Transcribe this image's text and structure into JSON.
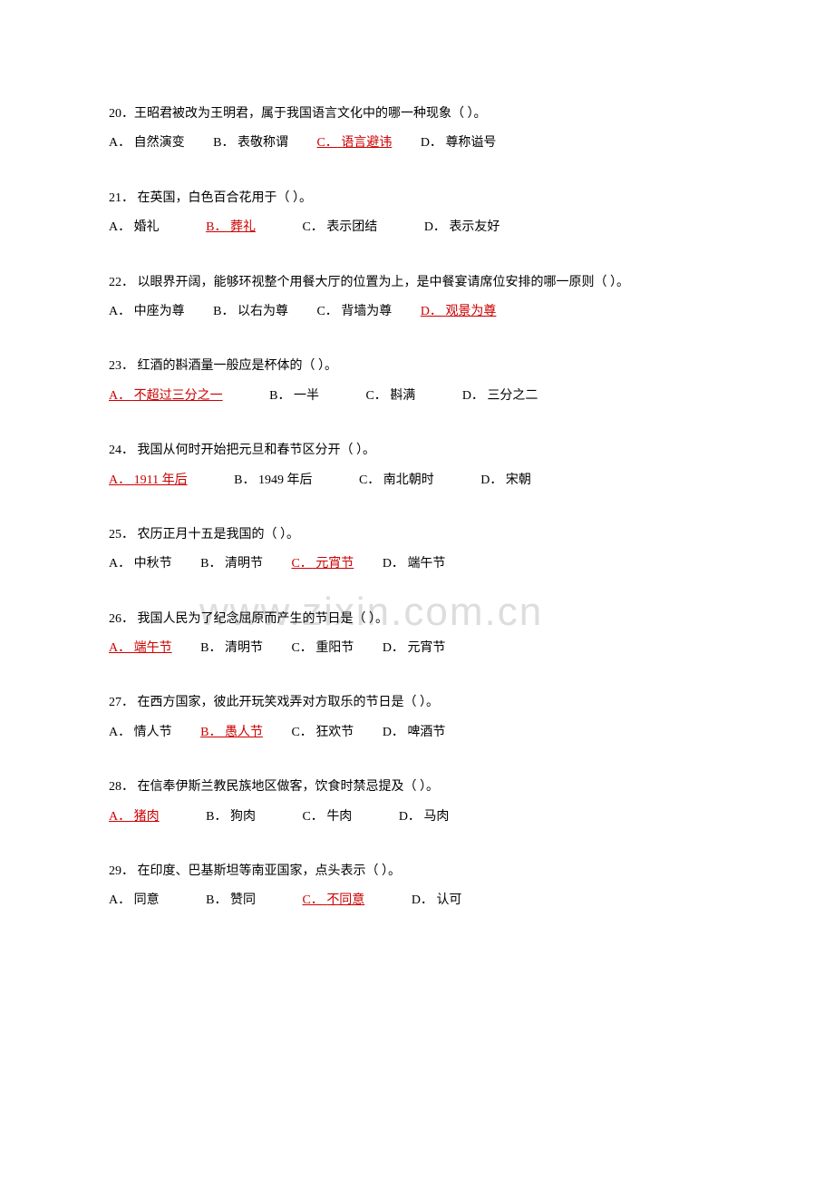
{
  "watermark": "www.zixin.com.cn",
  "questions": [
    {
      "num": "20",
      "text": "．王昭君被改为王明君，属于我国语言文化中的哪一种现象（ ）。",
      "opts": [
        {
          "k": "A．",
          "v": "自然演变",
          "a": false
        },
        {
          "k": "B．",
          "v": "表敬称谓",
          "a": false
        },
        {
          "k": "C．",
          "v": "语言避讳",
          "a": true
        },
        {
          "k": "D．",
          "v": "尊称谥号",
          "a": false
        }
      ]
    },
    {
      "num": "21",
      "text": "． 在英国，白色百合花用于（ ）。",
      "opts": [
        {
          "k": "A．",
          "v": "婚礼",
          "a": false
        },
        {
          "k": "B．",
          "v": "葬礼",
          "a": true
        },
        {
          "k": "C．",
          "v": "表示团结",
          "a": false
        },
        {
          "k": "D．",
          "v": "表示友好",
          "a": false
        }
      ]
    },
    {
      "num": "22",
      "text": "． 以眼界开阔，能够环视整个用餐大厅的位置为上，是中餐宴请席位安排的哪一原则（ ）。",
      "opts": [
        {
          "k": "A．",
          "v": "中座为尊",
          "a": false
        },
        {
          "k": "B．",
          "v": "以右为尊",
          "a": false
        },
        {
          "k": "C．",
          "v": "背墙为尊",
          "a": false
        },
        {
          "k": "D．",
          "v": "观景为尊",
          "a": true
        }
      ]
    },
    {
      "num": "23",
      "text": "． 红酒的斟酒量一般应是杯体的（ ）。",
      "opts": [
        {
          "k": "A．",
          "v": "不超过三分之一",
          "a": true
        },
        {
          "k": "B．",
          "v": "一半",
          "a": false
        },
        {
          "k": "C．",
          "v": "斟满",
          "a": false
        },
        {
          "k": "D．",
          "v": "三分之二",
          "a": false
        }
      ]
    },
    {
      "num": "24",
      "text": "． 我国从何时开始把元旦和春节区分开（ ）。",
      "opts": [
        {
          "k": "A．",
          "v": "1911 年后",
          "a": true
        },
        {
          "k": "B．",
          "v": "1949 年后",
          "a": false
        },
        {
          "k": "C．",
          "v": "南北朝时",
          "a": false
        },
        {
          "k": "D．",
          "v": "宋朝",
          "a": false
        }
      ]
    },
    {
      "num": "25",
      "text": "． 农历正月十五是我国的（ ）。",
      "opts": [
        {
          "k": "A．",
          "v": "中秋节",
          "a": false
        },
        {
          "k": "B．",
          "v": "清明节",
          "a": false
        },
        {
          "k": "C．",
          "v": "元宵节",
          "a": true
        },
        {
          "k": "D．",
          "v": "端午节",
          "a": false
        }
      ]
    },
    {
      "num": "26",
      "text": "． 我国人民为了纪念屈原而产生的节日是（ ）。",
      "opts": [
        {
          "k": "A．",
          "v": "端午节",
          "a": true
        },
        {
          "k": "B．",
          "v": "清明节",
          "a": false
        },
        {
          "k": "C．",
          "v": "重阳节",
          "a": false
        },
        {
          "k": "D．",
          "v": "元宵节",
          "a": false
        }
      ]
    },
    {
      "num": "27",
      "text": "． 在西方国家，彼此开玩笑戏弄对方取乐的节日是（ ）。",
      "opts": [
        {
          "k": "A．",
          "v": "情人节",
          "a": false
        },
        {
          "k": "B．",
          "v": "愚人节",
          "a": true
        },
        {
          "k": "C．",
          "v": "狂欢节",
          "a": false
        },
        {
          "k": "D．",
          "v": "啤酒节",
          "a": false
        }
      ]
    },
    {
      "num": "28",
      "text": "． 在信奉伊斯兰教民族地区做客，饮食时禁忌提及（ ）。",
      "opts": [
        {
          "k": "A．",
          "v": "猪肉",
          "a": true
        },
        {
          "k": "B．",
          "v": "狗肉",
          "a": false
        },
        {
          "k": "C．",
          "v": "牛肉",
          "a": false
        },
        {
          "k": "D．",
          "v": "马肉",
          "a": false
        }
      ]
    },
    {
      "num": "29",
      "text": "． 在印度、巴基斯坦等南亚国家，点头表示（ ）。",
      "opts": [
        {
          "k": "A．",
          "v": "同意",
          "a": false
        },
        {
          "k": "B．",
          "v": "赞同",
          "a": false
        },
        {
          "k": "C．",
          "v": "不同意",
          "a": true
        },
        {
          "k": "D．",
          "v": "认可",
          "a": false
        }
      ]
    }
  ]
}
